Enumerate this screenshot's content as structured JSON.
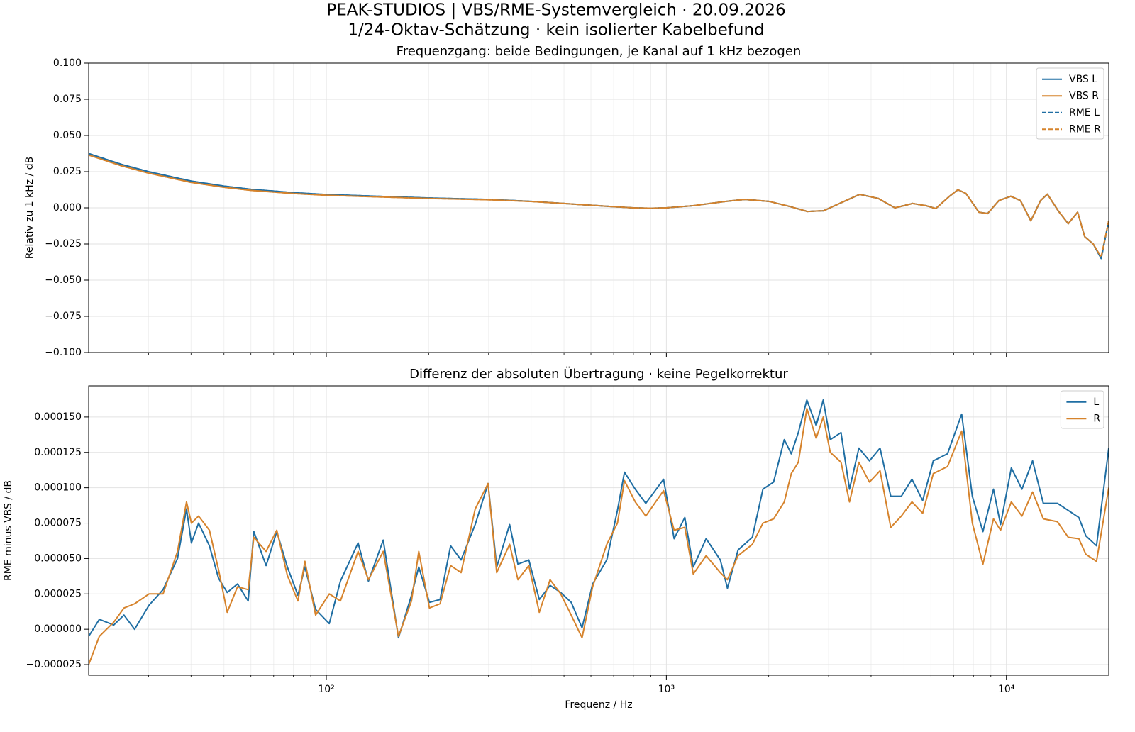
{
  "title": "PEAK-STUDIOS | VBS/RME-Systemvergleich · 20.09.2026",
  "subtitle": "1/24-Oktav-Schätzung · kein isolierter Kabelbefund",
  "chart_data": [
    {
      "type": "line",
      "title": "Frequenzgang: beide Bedingungen, je Kanal auf 1 kHz bezogen",
      "ylabel": "Relativ zu 1 kHz / dB",
      "xscale": "log",
      "grid": true,
      "legend": "upper right",
      "xlim": [
        20,
        20000
      ],
      "ylim": [
        -0.1,
        0.1
      ],
      "xticks": [
        100,
        1000,
        10000
      ],
      "xticks_minor": [
        30,
        40,
        50,
        60,
        70,
        80,
        90,
        200,
        300,
        400,
        500,
        600,
        700,
        800,
        900,
        2000,
        3000,
        4000,
        5000,
        6000,
        7000,
        8000,
        9000
      ],
      "yticks": [
        {
          "value": -0.1,
          "label": "−0.100"
        },
        {
          "value": -0.075,
          "label": "−0.075"
        },
        {
          "value": -0.05,
          "label": "−0.050"
        },
        {
          "value": -0.025,
          "label": "−0.025"
        },
        {
          "value": 0,
          "label": "0.000"
        },
        {
          "value": 0.025,
          "label": "0.025"
        },
        {
          "value": 0.05,
          "label": "0.050"
        },
        {
          "value": 0.075,
          "label": "0.075"
        },
        {
          "value": 0.1,
          "label": "0.100"
        }
      ],
      "x": [
        20,
        25,
        30,
        40,
        50,
        60,
        80,
        100,
        150,
        200,
        300,
        400,
        500,
        600,
        700,
        800,
        900,
        1000,
        1200,
        1500,
        1700,
        2000,
        2300,
        2600,
        2900,
        3300,
        3700,
        4200,
        4700,
        5300,
        5800,
        6200,
        6800,
        7200,
        7600,
        8300,
        8800,
        9500,
        10300,
        11000,
        11800,
        12600,
        13200,
        14200,
        15200,
        16200,
        17000,
        18000,
        19000,
        20000
      ],
      "series": [
        {
          "name": "VBS L",
          "color": "#1f6ea3",
          "linestyle": "solid",
          "values": [
            0.0375,
            0.03,
            0.025,
            0.0185,
            0.015,
            0.0128,
            0.0105,
            0.0092,
            0.0078,
            0.0068,
            0.0058,
            0.0045,
            0.003,
            0.0018,
            0.0008,
            0.0,
            -0.0003,
            0,
            0.0015,
            0.0045,
            0.0058,
            0.0045,
            0.001,
            -0.0025,
            -0.002,
            0.004,
            0.0093,
            0.0065,
            0.0,
            0.003,
            0.0015,
            -0.0005,
            0.008,
            0.0125,
            0.01,
            -0.003,
            -0.004,
            0.005,
            0.008,
            0.005,
            -0.009,
            0.005,
            0.0095,
            -0.002,
            -0.011,
            -0.003,
            -0.02,
            -0.025,
            -0.035,
            -0.009
          ]
        },
        {
          "name": "VBS R",
          "color": "#d6832c",
          "linestyle": "solid",
          "values": [
            0.0365,
            0.029,
            0.024,
            0.0176,
            0.0142,
            0.0121,
            0.0099,
            0.0087,
            0.0074,
            0.0065,
            0.0056,
            0.0044,
            0.003,
            0.0018,
            0.0008,
            0.0,
            -0.0003,
            0,
            0.0015,
            0.0045,
            0.0058,
            0.0045,
            0.001,
            -0.0025,
            -0.002,
            0.004,
            0.0093,
            0.0065,
            0.0,
            0.003,
            0.0015,
            -0.0005,
            0.008,
            0.0125,
            0.01,
            -0.003,
            -0.004,
            0.005,
            0.008,
            0.005,
            -0.009,
            0.005,
            0.0095,
            -0.002,
            -0.011,
            -0.003,
            -0.02,
            -0.025,
            -0.034,
            -0.009
          ]
        },
        {
          "name": "RME L",
          "color": "#1f6ea3",
          "linestyle": "dashed",
          "values": [
            0.0375,
            0.03,
            0.025,
            0.0185,
            0.015,
            0.0128,
            0.0105,
            0.0092,
            0.0078,
            0.0068,
            0.0058,
            0.0045,
            0.003,
            0.0018,
            0.0008,
            0.0,
            -0.0003,
            0,
            0.0015,
            0.0045,
            0.0058,
            0.0045,
            0.001,
            -0.0025,
            -0.002,
            0.004,
            0.0093,
            0.0065,
            0.0,
            0.003,
            0.0015,
            -0.0005,
            0.008,
            0.0125,
            0.01,
            -0.003,
            -0.004,
            0.005,
            0.008,
            0.005,
            -0.009,
            0.005,
            0.0095,
            -0.002,
            -0.011,
            -0.003,
            -0.02,
            -0.025,
            -0.035,
            -0.009
          ]
        },
        {
          "name": "RME R",
          "color": "#d6832c",
          "linestyle": "dashed",
          "values": [
            0.0365,
            0.029,
            0.024,
            0.0176,
            0.0142,
            0.0121,
            0.0099,
            0.0087,
            0.0074,
            0.0065,
            0.0056,
            0.0044,
            0.003,
            0.0018,
            0.0008,
            0.0,
            -0.0003,
            0,
            0.0015,
            0.0045,
            0.0058,
            0.0045,
            0.001,
            -0.0025,
            -0.002,
            0.004,
            0.0093,
            0.0065,
            0.0,
            0.003,
            0.0015,
            -0.0005,
            0.008,
            0.0125,
            0.01,
            -0.003,
            -0.004,
            0.005,
            0.008,
            0.005,
            -0.009,
            0.005,
            0.0095,
            -0.002,
            -0.011,
            -0.003,
            -0.02,
            -0.025,
            -0.034,
            -0.009
          ]
        }
      ]
    },
    {
      "type": "line",
      "title": "Differenz der absoluten Übertragung · keine Pegelkorrektur",
      "xlabel": "Frequenz / Hz",
      "ylabel": "RME minus VBS / dB",
      "xscale": "log",
      "grid": true,
      "legend": "upper right",
      "xlim": [
        20,
        20000
      ],
      "ylim": [
        -3.25e-05,
        0.000172
      ],
      "xticks": [
        {
          "value": 100,
          "label": "10²"
        },
        {
          "value": 1000,
          "label": "10³"
        },
        {
          "value": 10000,
          "label": "10⁴"
        }
      ],
      "xticks_minor": [
        30,
        40,
        50,
        60,
        70,
        80,
        90,
        200,
        300,
        400,
        500,
        600,
        700,
        800,
        900,
        2000,
        3000,
        4000,
        5000,
        6000,
        7000,
        8000,
        9000
      ],
      "yticks": [
        {
          "value": -2.5e-05,
          "label": "−0.000025"
        },
        {
          "value": 0,
          "label": "0.000000"
        },
        {
          "value": 2.5e-05,
          "label": "0.000025"
        },
        {
          "value": 5e-05,
          "label": "0.000050"
        },
        {
          "value": 7.5e-05,
          "label": "0.000075"
        },
        {
          "value": 0.0001,
          "label": "0.000100"
        },
        {
          "value": 0.000125,
          "label": "0.000125"
        },
        {
          "value": 0.00015,
          "label": "0.000150"
        }
      ],
      "x": [
        20,
        21.5,
        23.7,
        25.4,
        27.3,
        30.1,
        33.1,
        36.5,
        38.8,
        40.1,
        42.1,
        45.3,
        48.2,
        51.1,
        54.8,
        58.9,
        61.2,
        66.5,
        71.5,
        76.8,
        82.5,
        86.5,
        93,
        102,
        110,
        124,
        133,
        147,
        163,
        178,
        187,
        201,
        216,
        232,
        249,
        274,
        299,
        317,
        346,
        366,
        394,
        423,
        455,
        489,
        525,
        565,
        607,
        668,
        718,
        753,
        810,
        870,
        981,
        1054,
        1133,
        1200,
        1309,
        1441,
        1512,
        1625,
        1790,
        1923,
        2067,
        2222,
        2330,
        2444,
        2589,
        2758,
        2893,
        3034,
        3263,
        3456,
        3683,
        3957,
        4250,
        4570,
        4910,
        5275,
        5672,
        6095,
        6711,
        7387,
        7940,
        8530,
        9163,
        9610,
        10340,
        11110,
        11940,
        12840,
        14130,
        15200,
        16330,
        17130,
        18410,
        20000
      ],
      "series": [
        {
          "name": "L",
          "color": "#1f6ea3",
          "linestyle": "solid",
          "values": [
            -5e-06,
            7e-06,
            3e-06,
            1e-05,
            0.0,
            1.7e-05,
            2.8e-05,
            5e-05,
            8.5e-05,
            6.1e-05,
            7.5e-05,
            5.9e-05,
            3.6e-05,
            2.6e-05,
            3.2e-05,
            2e-05,
            6.9e-05,
            4.5e-05,
            6.9e-05,
            4.4e-05,
            2.4e-05,
            4.4e-05,
            1.4e-05,
            4e-06,
            3.4e-05,
            6.1e-05,
            3.4e-05,
            6.3e-05,
            -6e-06,
            2.4e-05,
            4.4e-05,
            1.9e-05,
            2.1e-05,
            5.9e-05,
            4.9e-05,
            7.4e-05,
            0.000103,
            4.4e-05,
            7.4e-05,
            4.6e-05,
            4.9e-05,
            2.1e-05,
            3.1e-05,
            2.6e-05,
            1.9e-05,
            1e-06,
            3.2e-05,
            4.9e-05,
            8.4e-05,
            0.000111,
            9.9e-05,
            8.9e-05,
            0.000106,
            6.4e-05,
            7.9e-05,
            4.4e-05,
            6.4e-05,
            4.9e-05,
            2.9e-05,
            5.6e-05,
            6.5e-05,
            9.9e-05,
            0.000104,
            0.000134,
            0.000124,
            0.000139,
            0.000162,
            0.000144,
            0.000162,
            0.000134,
            0.000139,
            9.9e-05,
            0.000128,
            0.000119,
            0.000128,
            9.4e-05,
            9.4e-05,
            0.000106,
            9.1e-05,
            0.000119,
            0.000124,
            0.000152,
            9.4e-05,
            6.9e-05,
            9.9e-05,
            7.4e-05,
            0.000114,
            9.9e-05,
            0.000119,
            8.9e-05,
            8.9e-05,
            8.4e-05,
            7.9e-05,
            6.6e-05,
            5.9e-05,
            0.000128
          ]
        },
        {
          "name": "R",
          "color": "#d6832c",
          "linestyle": "solid",
          "values": [
            -2.5e-05,
            -5e-06,
            5e-06,
            1.5e-05,
            1.8e-05,
            2.5e-05,
            2.5e-05,
            5.5e-05,
            9e-05,
            7.5e-05,
            8e-05,
            7e-05,
            4.2e-05,
            1.2e-05,
            3e-05,
            2.8e-05,
            6.5e-05,
            5.5e-05,
            7e-05,
            3.8e-05,
            2e-05,
            4.8e-05,
            1e-05,
            2.5e-05,
            2e-05,
            5.5e-05,
            3.5e-05,
            5.5e-05,
            -5e-06,
            2e-05,
            5.5e-05,
            1.5e-05,
            1.8e-05,
            4.5e-05,
            4e-05,
            8.5e-05,
            0.000103,
            4e-05,
            6e-05,
            3.5e-05,
            4.5e-05,
            1.2e-05,
            3.5e-05,
            2.5e-05,
            1e-05,
            -6e-06,
            3e-05,
            6e-05,
            7.5e-05,
            0.000105,
            9e-05,
            8e-05,
            9.8e-05,
            7e-05,
            7.2e-05,
            3.9e-05,
            5.2e-05,
            4e-05,
            3.5e-05,
            5.2e-05,
            6e-05,
            7.5e-05,
            7.8e-05,
            9e-05,
            0.00011,
            0.000118,
            0.000156,
            0.000135,
            0.00015,
            0.000125,
            0.000118,
            9e-05,
            0.000118,
            0.000104,
            0.000112,
            7.2e-05,
            8e-05,
            9e-05,
            8.2e-05,
            0.00011,
            0.000115,
            0.00014,
            7.5e-05,
            4.6e-05,
            7.8e-05,
            7e-05,
            9e-05,
            8e-05,
            9.7e-05,
            7.8e-05,
            7.6e-05,
            6.5e-05,
            6.4e-05,
            5.3e-05,
            4.8e-05,
            0.0001
          ]
        }
      ]
    }
  ]
}
